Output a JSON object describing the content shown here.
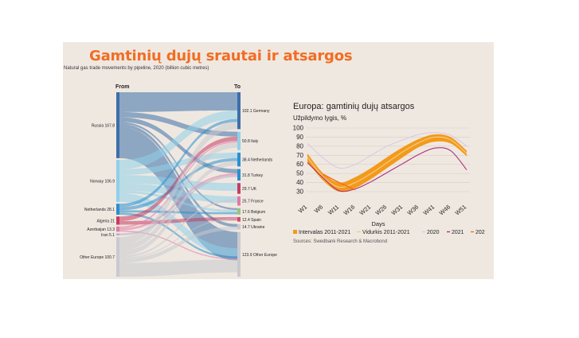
{
  "title": "Gamtinių dujų srautai ir atsargos",
  "sankey": {
    "subtitle": "Natural gas trade movements by pipeline, 2020 (billion cubic metres)",
    "from_label": "From",
    "to_label": "To",
    "sources": [
      {
        "label": "Russia 167.8",
        "value": 167.8,
        "color": "#3d6fa8"
      },
      {
        "label": "Norway 106.9",
        "value": 106.9,
        "color": "#8fd0ea"
      },
      {
        "label": "Netherlands 28.1",
        "value": 28.1,
        "color": "#2a8fd0"
      },
      {
        "label": "Algeria 21",
        "value": 21,
        "color": "#c73b63"
      },
      {
        "label": "Azerbaijan 13.3",
        "value": 13.3,
        "color": "#e37aa5"
      },
      {
        "label": "Iran 5.1",
        "value": 5.1,
        "color": "#b9a9c9"
      },
      {
        "label": "Other Europe 100.7",
        "value": 100.7,
        "color": "#c9c9cf"
      }
    ],
    "targets": [
      {
        "label": "102.1 Germany",
        "value": 102.1,
        "color": "#3d6fa8"
      },
      {
        "label": "50.8 Italy",
        "value": 50.8,
        "color": "#8fd0ea"
      },
      {
        "label": "38.4 Netherlands",
        "value": 38.4,
        "color": "#2a8fd0"
      },
      {
        "label": "31.8 Turkey",
        "value": 31.8,
        "color": "#2a8fd0"
      },
      {
        "label": "29.7 UK",
        "value": 29.7,
        "color": "#c73b63"
      },
      {
        "label": "25.7 France",
        "value": 25.7,
        "color": "#e37aa5"
      },
      {
        "label": "17.6 Belgium",
        "value": 17.6,
        "color": "#9ac47a"
      },
      {
        "label": "12.4 Spain",
        "value": 12.4,
        "color": "#d54b6f"
      },
      {
        "label": "14.7 Ukraine",
        "value": 14.7,
        "color": "#c9c9cf"
      },
      {
        "label": "123.9 Other Europe",
        "value": 123.9,
        "color": "#c9c9cf"
      }
    ]
  },
  "storage": {
    "title": "Europa: gamtinių dujų atsargos",
    "subtitle": "Užpildymo lygis, %",
    "xlabel": "Days",
    "source": "Sources: Swedbank Research & Macrobond",
    "legend": [
      {
        "label": "Intervalas 2011-2021",
        "color": "#f39a1a"
      },
      {
        "label": "Vidurkis 2011-2021",
        "color": "#f4c98a"
      },
      {
        "label": "2020",
        "color": "#d9c8e0"
      },
      {
        "label": "2021",
        "color": "#b0307a"
      },
      {
        "label": "202",
        "color": "#f26d21"
      }
    ]
  },
  "chart_data": [
    {
      "type": "sankey",
      "subtitle": "Natural gas trade movements by pipeline, 2020 (billion cubic metres)",
      "sources": [
        "Russia",
        "Norway",
        "Netherlands",
        "Algeria",
        "Azerbaijan",
        "Iran",
        "Other Europe"
      ],
      "source_values": [
        167.8,
        106.9,
        28.1,
        21,
        13.3,
        5.1,
        100.7
      ],
      "targets": [
        "Germany",
        "Italy",
        "Netherlands",
        "Turkey",
        "UK",
        "France",
        "Belgium",
        "Spain",
        "Ukraine",
        "Other Europe"
      ],
      "target_values": [
        102.1,
        50.8,
        38.4,
        31.8,
        29.7,
        25.7,
        17.6,
        12.4,
        14.7,
        123.9
      ]
    },
    {
      "type": "line",
      "title": "Europa: gamtinių dujų atsargos",
      "ylabel": "Užpildymo lygis, %",
      "xlabel": "Days",
      "categories": [
        "W1",
        "W6",
        "W11",
        "W16",
        "W21",
        "W26",
        "W31",
        "W36",
        "W41",
        "W46",
        "W51"
      ],
      "ylim": [
        30,
        100
      ],
      "yticks": [
        30,
        40,
        50,
        60,
        70,
        80,
        90,
        100
      ],
      "grid": true,
      "legend_position": "bottom",
      "series": [
        {
          "name": "Intervalas 2011-2021 (min)",
          "values": [
            63,
            42,
            30,
            34,
            44,
            56,
            68,
            79,
            85,
            83,
            69
          ]
        },
        {
          "name": "Intervalas 2011-2021 (max)",
          "values": [
            72,
            50,
            40,
            46,
            56,
            68,
            79,
            88,
            93,
            90,
            75
          ]
        },
        {
          "name": "Vidurkis 2011-2021",
          "values": [
            68,
            46,
            35,
            40,
            50,
            62,
            74,
            84,
            90,
            87,
            72
          ]
        },
        {
          "name": "2020",
          "values": [
            83,
            67,
            56,
            60,
            70,
            80,
            87,
            93,
            95,
            92,
            80
          ]
        },
        {
          "name": "2021",
          "values": [
            62,
            45,
            31,
            33,
            41,
            51,
            61,
            71,
            78,
            75,
            54
          ]
        },
        {
          "name": "202",
          "values": [
            null,
            49,
            40,
            32,
            null,
            null,
            null,
            null,
            null,
            null,
            null
          ]
        }
      ]
    }
  ]
}
